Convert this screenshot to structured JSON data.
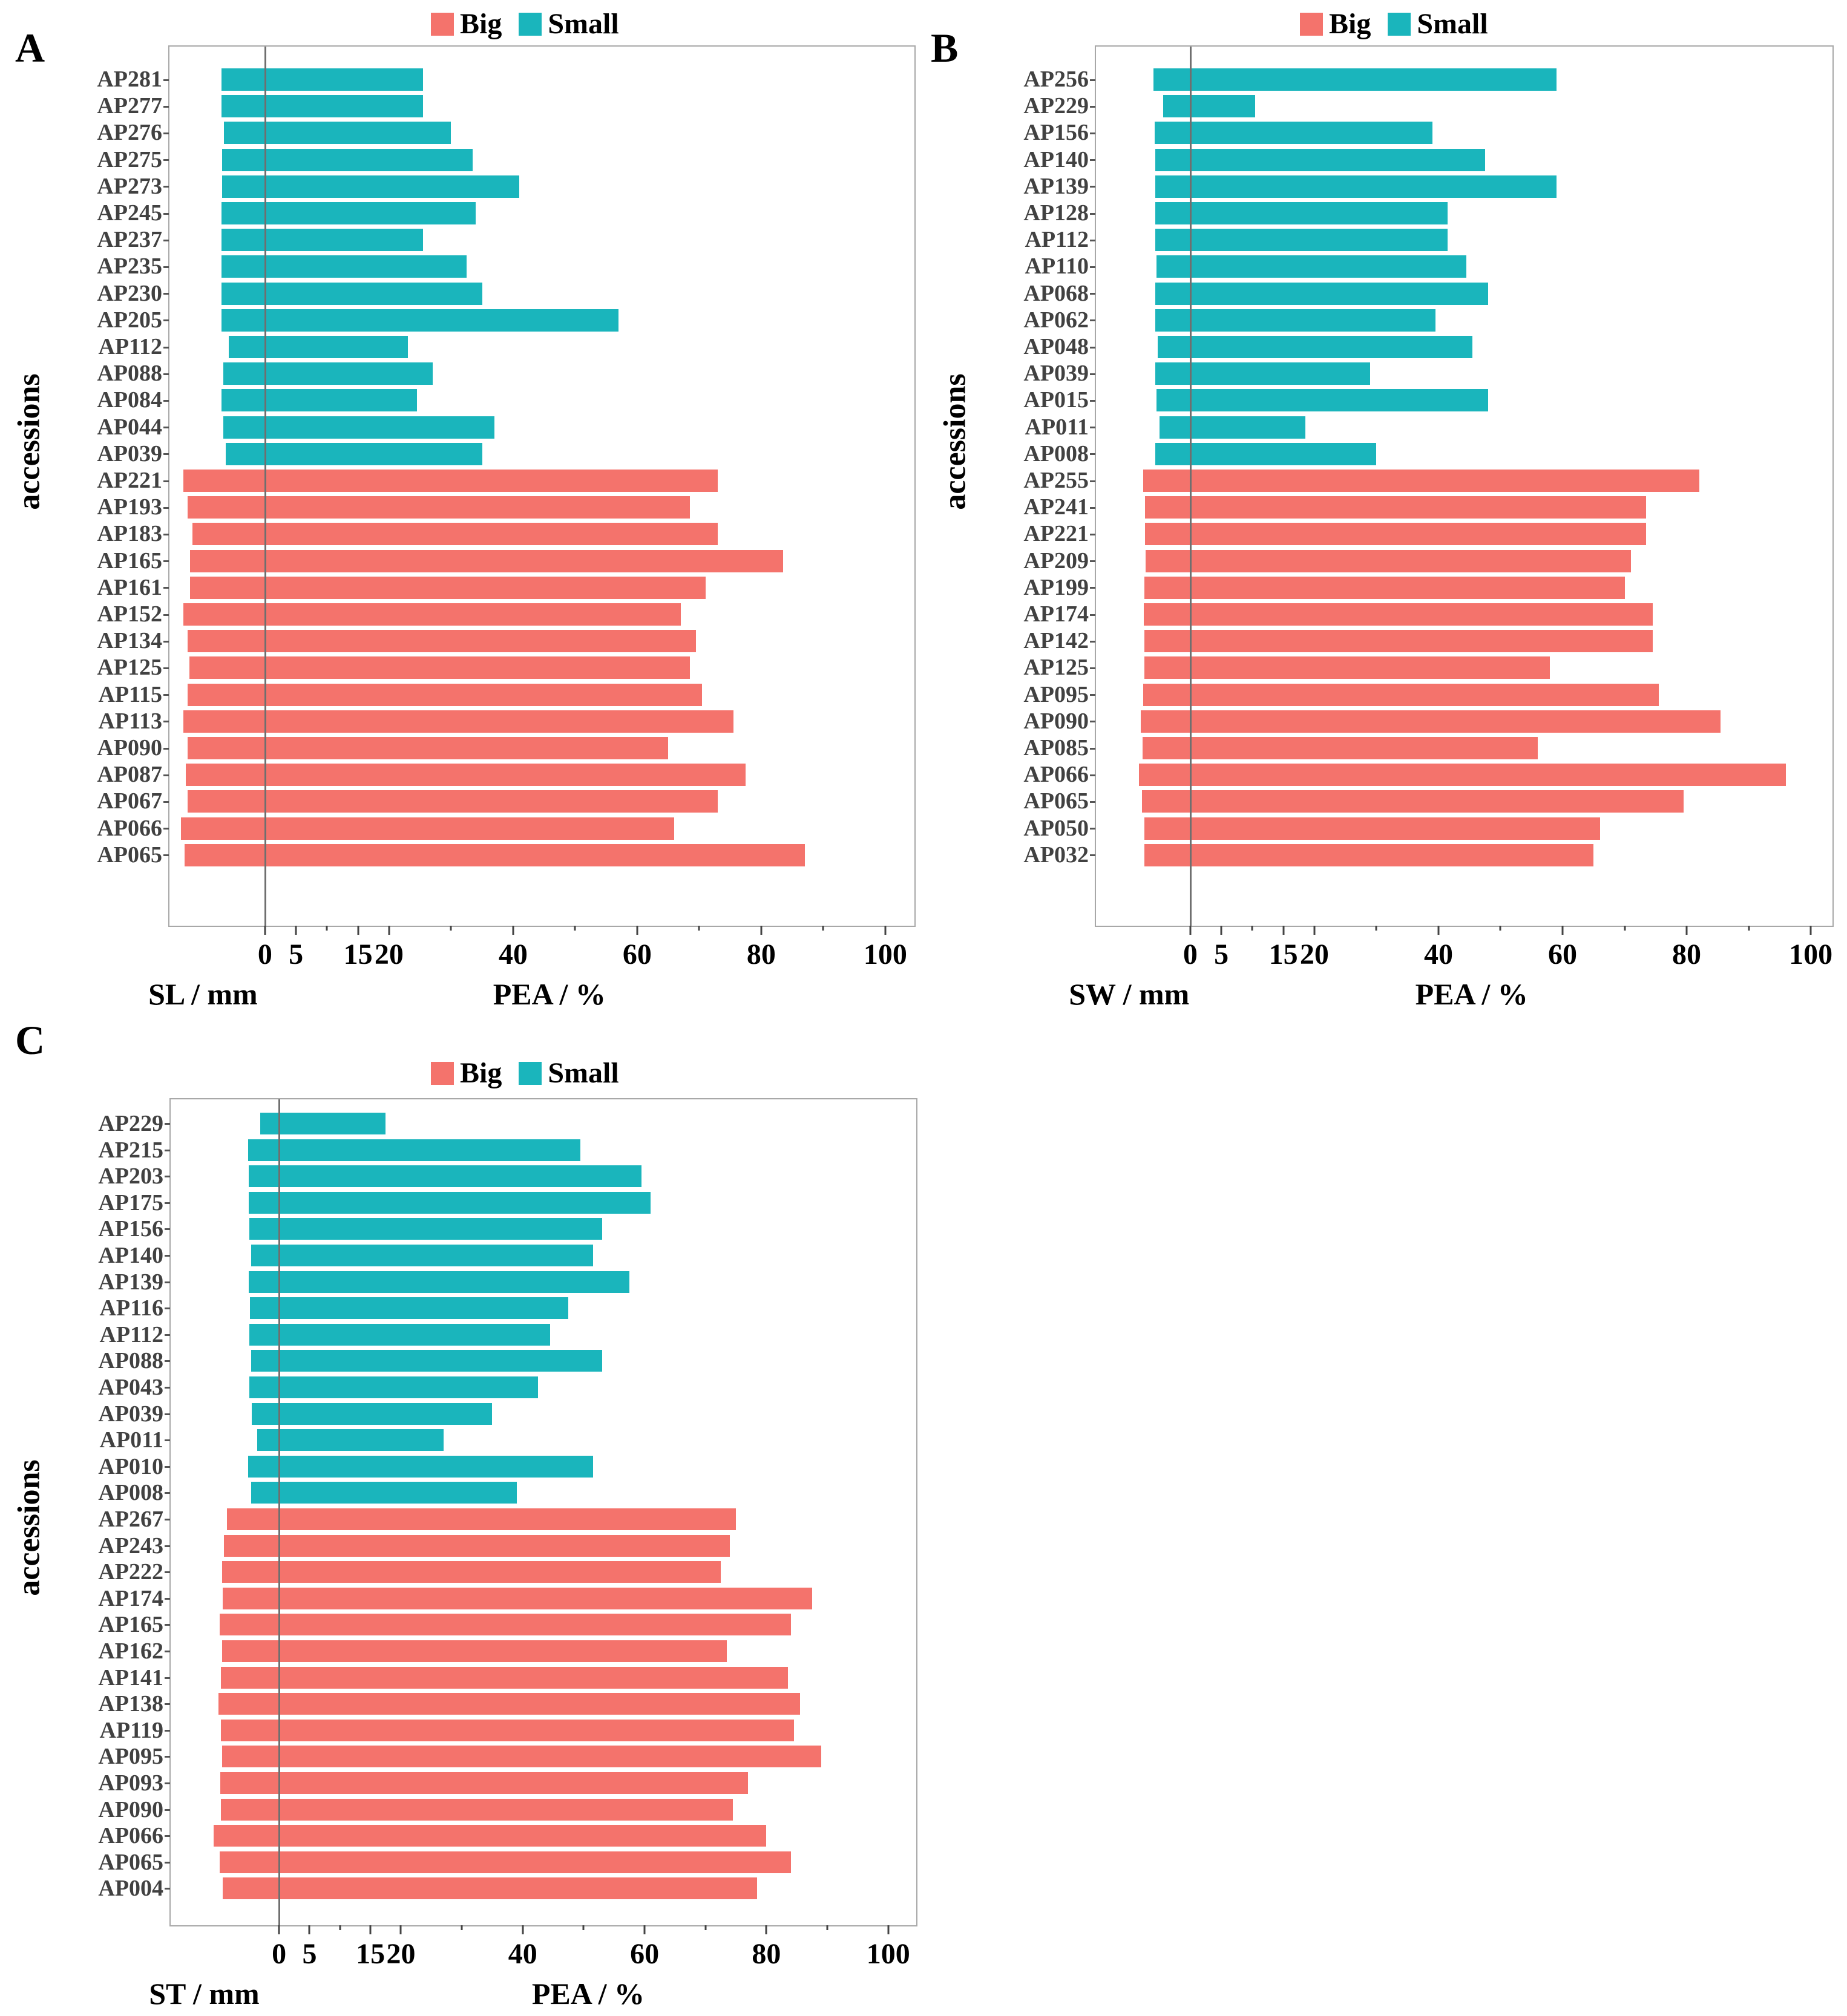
{
  "ylabel": "accessions",
  "legend": {
    "big_label": "Big",
    "small_label": "Small"
  },
  "colors": {
    "big": "#f4736c",
    "small": "#1ab5bc",
    "zero_line": "#6f6f6f",
    "plot_border": "#a8a8a8",
    "row_label_text": "#414141"
  },
  "chart_data": [
    {
      "panel_letter": "A",
      "type": "bar",
      "orientation": "horizontal-diverging",
      "left_axis_label": "SL / mm",
      "right_axis_label": "PEA / %",
      "axis_min": -15.4,
      "axis_max": 104.7,
      "ticks": {
        "mm": [
          {
            "v": 15,
            "l": "15"
          },
          {
            "v": 10,
            "l": ""
          },
          {
            "v": 5,
            "l": "5"
          },
          {
            "v": 0,
            "l": "0"
          }
        ],
        "pea": [
          {
            "v": 10,
            "l": ""
          },
          {
            "v": 20,
            "l": "20"
          },
          {
            "v": 30,
            "l": ""
          },
          {
            "v": 40,
            "l": "40"
          },
          {
            "v": 50,
            "l": ""
          },
          {
            "v": 60,
            "l": "60"
          },
          {
            "v": 70,
            "l": ""
          },
          {
            "v": 80,
            "l": "80"
          },
          {
            "v": 90,
            "l": ""
          },
          {
            "v": 100,
            "l": "100"
          }
        ]
      },
      "rows": [
        {
          "name": "AP281",
          "group": "Small",
          "mm": 7.0,
          "pea": 25.5
        },
        {
          "name": "AP277",
          "group": "Small",
          "mm": 7.0,
          "pea": 25.5
        },
        {
          "name": "AP276",
          "group": "Small",
          "mm": 6.6,
          "pea": 30
        },
        {
          "name": "AP275",
          "group": "Small",
          "mm": 6.9,
          "pea": 33.5
        },
        {
          "name": "AP273",
          "group": "Small",
          "mm": 6.9,
          "pea": 41
        },
        {
          "name": "AP245",
          "group": "Small",
          "mm": 7.0,
          "pea": 34
        },
        {
          "name": "AP237",
          "group": "Small",
          "mm": 7.0,
          "pea": 25.5
        },
        {
          "name": "AP235",
          "group": "Small",
          "mm": 7.0,
          "pea": 32.5
        },
        {
          "name": "AP230",
          "group": "Small",
          "mm": 7.0,
          "pea": 35
        },
        {
          "name": "AP205",
          "group": "Small",
          "mm": 7.0,
          "pea": 57
        },
        {
          "name": "AP112",
          "group": "Small",
          "mm": 5.8,
          "pea": 23
        },
        {
          "name": "AP088",
          "group": "Small",
          "mm": 6.7,
          "pea": 27
        },
        {
          "name": "AP084",
          "group": "Small",
          "mm": 7.0,
          "pea": 24.5
        },
        {
          "name": "AP044",
          "group": "Small",
          "mm": 6.7,
          "pea": 37
        },
        {
          "name": "AP039",
          "group": "Small",
          "mm": 6.3,
          "pea": 35
        },
        {
          "name": "AP221",
          "group": "Big",
          "mm": 13.2,
          "pea": 73
        },
        {
          "name": "AP193",
          "group": "Big",
          "mm": 12.5,
          "pea": 68.5
        },
        {
          "name": "AP183",
          "group": "Big",
          "mm": 11.7,
          "pea": 73
        },
        {
          "name": "AP165",
          "group": "Big",
          "mm": 12.1,
          "pea": 83.5
        },
        {
          "name": "AP161",
          "group": "Big",
          "mm": 12.1,
          "pea": 71
        },
        {
          "name": "AP152",
          "group": "Big",
          "mm": 13.2,
          "pea": 67
        },
        {
          "name": "AP134",
          "group": "Big",
          "mm": 12.5,
          "pea": 69.5
        },
        {
          "name": "AP125",
          "group": "Big",
          "mm": 12.2,
          "pea": 68.5
        },
        {
          "name": "AP115",
          "group": "Big",
          "mm": 12.5,
          "pea": 70.5
        },
        {
          "name": "AP113",
          "group": "Big",
          "mm": 13.2,
          "pea": 75.5
        },
        {
          "name": "AP090",
          "group": "Big",
          "mm": 12.5,
          "pea": 65
        },
        {
          "name": "AP087",
          "group": "Big",
          "mm": 12.8,
          "pea": 77.5
        },
        {
          "name": "AP067",
          "group": "Big",
          "mm": 12.5,
          "pea": 73
        },
        {
          "name": "AP066",
          "group": "Big",
          "mm": 13.5,
          "pea": 66
        },
        {
          "name": "AP065",
          "group": "Big",
          "mm": 13.0,
          "pea": 87
        }
      ]
    },
    {
      "panel_letter": "B",
      "type": "bar",
      "orientation": "horizontal-diverging",
      "left_axis_label": "SW / mm",
      "right_axis_label": "PEA / %",
      "axis_min": -15.2,
      "axis_max": 103.5,
      "ticks": {
        "mm": [
          {
            "v": 15,
            "l": "15"
          },
          {
            "v": 10,
            "l": ""
          },
          {
            "v": 5,
            "l": "5"
          },
          {
            "v": 0,
            "l": "0"
          }
        ],
        "pea": [
          {
            "v": 10,
            "l": ""
          },
          {
            "v": 20,
            "l": "20"
          },
          {
            "v": 30,
            "l": ""
          },
          {
            "v": 40,
            "l": "40"
          },
          {
            "v": 50,
            "l": ""
          },
          {
            "v": 60,
            "l": "60"
          },
          {
            "v": 70,
            "l": ""
          },
          {
            "v": 80,
            "l": "80"
          },
          {
            "v": 90,
            "l": ""
          },
          {
            "v": 100,
            "l": "100"
          }
        ]
      },
      "rows": [
        {
          "name": "AP256",
          "group": "Small",
          "mm": 5.9,
          "pea": 59
        },
        {
          "name": "AP229",
          "group": "Small",
          "mm": 4.4,
          "pea": 10.5
        },
        {
          "name": "AP156",
          "group": "Small",
          "mm": 5.7,
          "pea": 39
        },
        {
          "name": "AP140",
          "group": "Small",
          "mm": 5.6,
          "pea": 47.5
        },
        {
          "name": "AP139",
          "group": "Small",
          "mm": 5.6,
          "pea": 59
        },
        {
          "name": "AP128",
          "group": "Small",
          "mm": 5.6,
          "pea": 41.5
        },
        {
          "name": "AP112",
          "group": "Small",
          "mm": 5.6,
          "pea": 41.5
        },
        {
          "name": "AP110",
          "group": "Small",
          "mm": 5.4,
          "pea": 44.5
        },
        {
          "name": "AP068",
          "group": "Small",
          "mm": 5.6,
          "pea": 48
        },
        {
          "name": "AP062",
          "group": "Small",
          "mm": 5.6,
          "pea": 39.5
        },
        {
          "name": "AP048",
          "group": "Small",
          "mm": 5.3,
          "pea": 45.5
        },
        {
          "name": "AP039",
          "group": "Small",
          "mm": 5.6,
          "pea": 29
        },
        {
          "name": "AP015",
          "group": "Small",
          "mm": 5.4,
          "pea": 48
        },
        {
          "name": "AP011",
          "group": "Small",
          "mm": 5.0,
          "pea": 18.5
        },
        {
          "name": "AP008",
          "group": "Small",
          "mm": 5.6,
          "pea": 30
        },
        {
          "name": "AP255",
          "group": "Big",
          "mm": 7.6,
          "pea": 82
        },
        {
          "name": "AP241",
          "group": "Big",
          "mm": 7.3,
          "pea": 73.5
        },
        {
          "name": "AP221",
          "group": "Big",
          "mm": 7.3,
          "pea": 73.5
        },
        {
          "name": "AP209",
          "group": "Big",
          "mm": 7.2,
          "pea": 71
        },
        {
          "name": "AP199",
          "group": "Big",
          "mm": 7.4,
          "pea": 70
        },
        {
          "name": "AP174",
          "group": "Big",
          "mm": 7.5,
          "pea": 74.5
        },
        {
          "name": "AP142",
          "group": "Big",
          "mm": 7.4,
          "pea": 74.5
        },
        {
          "name": "AP125",
          "group": "Big",
          "mm": 7.4,
          "pea": 58
        },
        {
          "name": "AP095",
          "group": "Big",
          "mm": 7.6,
          "pea": 75.5
        },
        {
          "name": "AP090",
          "group": "Big",
          "mm": 8.0,
          "pea": 85.5
        },
        {
          "name": "AP085",
          "group": "Big",
          "mm": 7.7,
          "pea": 56
        },
        {
          "name": "AP066",
          "group": "Big",
          "mm": 8.3,
          "pea": 96
        },
        {
          "name": "AP065",
          "group": "Big",
          "mm": 7.8,
          "pea": 79.5
        },
        {
          "name": "AP050",
          "group": "Big",
          "mm": 7.4,
          "pea": 66
        },
        {
          "name": "AP032",
          "group": "Big",
          "mm": 7.4,
          "pea": 65
        }
      ]
    },
    {
      "panel_letter": "C",
      "type": "bar",
      "orientation": "horizontal-diverging",
      "left_axis_label": "ST / mm",
      "right_axis_label": "PEA / %",
      "axis_min": -17.8,
      "axis_max": 104.6,
      "ticks": {
        "mm": [
          {
            "v": 15,
            "l": "15"
          },
          {
            "v": 10,
            "l": ""
          },
          {
            "v": 5,
            "l": "5"
          },
          {
            "v": 0,
            "l": "0"
          }
        ],
        "pea": [
          {
            "v": 10,
            "l": ""
          },
          {
            "v": 20,
            "l": "20"
          },
          {
            "v": 30,
            "l": ""
          },
          {
            "v": 40,
            "l": "40"
          },
          {
            "v": 50,
            "l": ""
          },
          {
            "v": 60,
            "l": "60"
          },
          {
            "v": 70,
            "l": ""
          },
          {
            "v": 80,
            "l": "80"
          },
          {
            "v": 90,
            "l": ""
          },
          {
            "v": 100,
            "l": "100"
          }
        ]
      },
      "rows": [
        {
          "name": "AP229",
          "group": "Small",
          "mm": 3.1,
          "pea": 17.5
        },
        {
          "name": "AP215",
          "group": "Small",
          "mm": 5.1,
          "pea": 49.5
        },
        {
          "name": "AP203",
          "group": "Small",
          "mm": 5.0,
          "pea": 59.5
        },
        {
          "name": "AP175",
          "group": "Small",
          "mm": 5.0,
          "pea": 61
        },
        {
          "name": "AP156",
          "group": "Small",
          "mm": 4.9,
          "pea": 53
        },
        {
          "name": "AP140",
          "group": "Small",
          "mm": 4.6,
          "pea": 51.5
        },
        {
          "name": "AP139",
          "group": "Small",
          "mm": 5.0,
          "pea": 57.5
        },
        {
          "name": "AP116",
          "group": "Small",
          "mm": 4.8,
          "pea": 47.5
        },
        {
          "name": "AP112",
          "group": "Small",
          "mm": 4.9,
          "pea": 44.5
        },
        {
          "name": "AP088",
          "group": "Small",
          "mm": 4.6,
          "pea": 53
        },
        {
          "name": "AP043",
          "group": "Small",
          "mm": 4.9,
          "pea": 42.5
        },
        {
          "name": "AP039",
          "group": "Small",
          "mm": 4.5,
          "pea": 35
        },
        {
          "name": "AP011",
          "group": "Small",
          "mm": 3.6,
          "pea": 27
        },
        {
          "name": "AP010",
          "group": "Small",
          "mm": 5.1,
          "pea": 51.5
        },
        {
          "name": "AP008",
          "group": "Small",
          "mm": 4.6,
          "pea": 39
        },
        {
          "name": "AP267",
          "group": "Big",
          "mm": 8.6,
          "pea": 75
        },
        {
          "name": "AP243",
          "group": "Big",
          "mm": 9.1,
          "pea": 74
        },
        {
          "name": "AP222",
          "group": "Big",
          "mm": 9.4,
          "pea": 72.5
        },
        {
          "name": "AP174",
          "group": "Big",
          "mm": 9.3,
          "pea": 87.5
        },
        {
          "name": "AP165",
          "group": "Big",
          "mm": 9.8,
          "pea": 84
        },
        {
          "name": "AP162",
          "group": "Big",
          "mm": 9.4,
          "pea": 73.5
        },
        {
          "name": "AP141",
          "group": "Big",
          "mm": 9.6,
          "pea": 83.5
        },
        {
          "name": "AP138",
          "group": "Big",
          "mm": 10.0,
          "pea": 85.5
        },
        {
          "name": "AP119",
          "group": "Big",
          "mm": 9.6,
          "pea": 84.5
        },
        {
          "name": "AP095",
          "group": "Big",
          "mm": 9.4,
          "pea": 89
        },
        {
          "name": "AP093",
          "group": "Big",
          "mm": 9.7,
          "pea": 77
        },
        {
          "name": "AP090",
          "group": "Big",
          "mm": 9.6,
          "pea": 74.5
        },
        {
          "name": "AP066",
          "group": "Big",
          "mm": 10.7,
          "pea": 80
        },
        {
          "name": "AP065",
          "group": "Big",
          "mm": 9.8,
          "pea": 84
        },
        {
          "name": "AP004",
          "group": "Big",
          "mm": 9.3,
          "pea": 78.5
        }
      ]
    }
  ]
}
